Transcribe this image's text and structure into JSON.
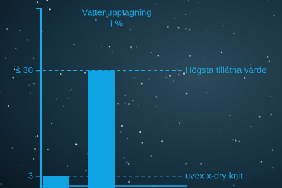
{
  "chart_data": {
    "type": "bar",
    "title": [
      "Vattenupptagning",
      "i %"
    ],
    "categories": [
      "uvex x-dry knit",
      "Högsta tillåtna värde"
    ],
    "values": [
      3,
      30
    ],
    "color": "#0ea3e2",
    "ylim": [
      0,
      46
    ],
    "yticks": [
      {
        "value": 30,
        "label": "≤ 30"
      },
      3
    ]
  }
}
